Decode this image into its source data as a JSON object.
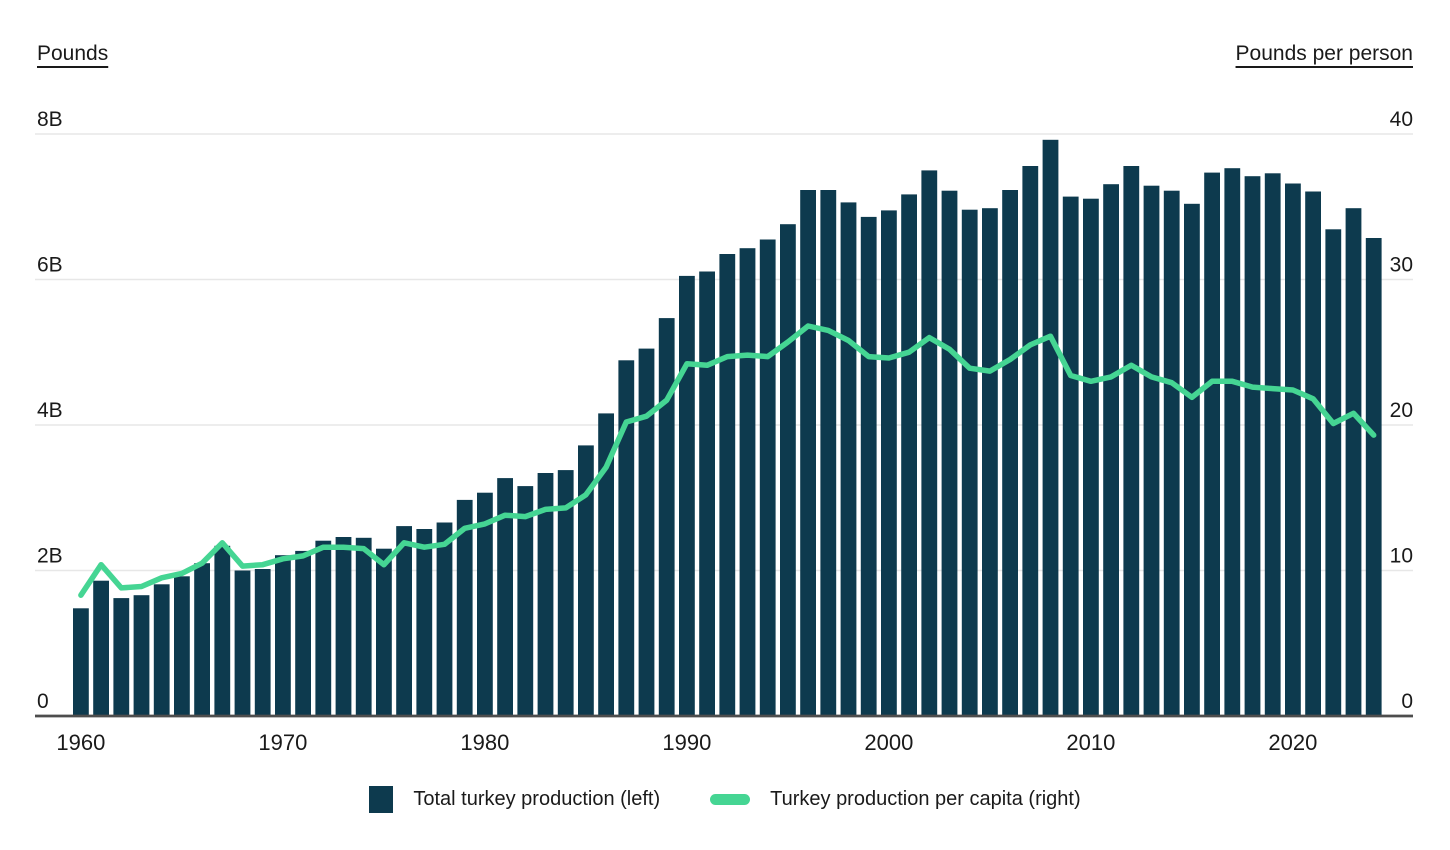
{
  "axes": {
    "left_title": "Pounds",
    "right_title": "Pounds per person"
  },
  "legend": [
    {
      "label": "Total turkey production (left)",
      "swatch": "square"
    },
    {
      "label": "Turkey production per capita (right)",
      "swatch": "line"
    }
  ],
  "chart_data": {
    "type": "combo",
    "title": "",
    "x": [
      1960,
      1961,
      1962,
      1963,
      1964,
      1965,
      1966,
      1967,
      1968,
      1969,
      1970,
      1971,
      1972,
      1973,
      1974,
      1975,
      1976,
      1977,
      1978,
      1979,
      1980,
      1981,
      1982,
      1983,
      1984,
      1985,
      1986,
      1987,
      1988,
      1989,
      1990,
      1991,
      1992,
      1993,
      1994,
      1995,
      1996,
      1997,
      1998,
      1999,
      2000,
      2001,
      2002,
      2003,
      2004,
      2005,
      2006,
      2007,
      2008,
      2009,
      2010,
      2011,
      2012,
      2013,
      2014,
      2015,
      2016,
      2017,
      2018,
      2019,
      2020,
      2021,
      2022,
      2023,
      2024
    ],
    "series": [
      {
        "name": "Total turkey production (left)",
        "type": "bar",
        "axis": "left",
        "unit": "billion pounds",
        "values": [
          1.48,
          1.86,
          1.62,
          1.66,
          1.81,
          1.92,
          2.1,
          2.34,
          2.0,
          2.02,
          2.21,
          2.27,
          2.41,
          2.46,
          2.45,
          2.3,
          2.61,
          2.57,
          2.66,
          2.97,
          3.07,
          3.27,
          3.16,
          3.34,
          3.38,
          3.72,
          4.16,
          4.89,
          5.05,
          5.47,
          6.05,
          6.11,
          6.35,
          6.43,
          6.55,
          6.76,
          7.23,
          7.23,
          7.06,
          6.86,
          6.95,
          7.17,
          7.5,
          7.22,
          6.96,
          6.98,
          7.23,
          7.56,
          7.92,
          7.14,
          7.11,
          7.31,
          7.56,
          7.29,
          7.22,
          7.04,
          7.47,
          7.53,
          7.42,
          7.46,
          7.32,
          7.21,
          6.69,
          6.98,
          6.57
        ]
      },
      {
        "name": "Turkey production per capita (right)",
        "type": "line",
        "axis": "right",
        "unit": "pounds per person",
        "values": [
          8.3,
          10.4,
          8.8,
          8.9,
          9.5,
          9.8,
          10.5,
          11.9,
          10.3,
          10.4,
          10.8,
          11.0,
          11.6,
          11.6,
          11.5,
          10.4,
          11.9,
          11.6,
          11.8,
          12.9,
          13.2,
          13.8,
          13.7,
          14.2,
          14.3,
          15.2,
          17.1,
          20.2,
          20.6,
          21.7,
          24.2,
          24.1,
          24.7,
          24.8,
          24.7,
          25.7,
          26.8,
          26.5,
          25.8,
          24.7,
          24.6,
          25.0,
          26.0,
          25.2,
          23.9,
          23.7,
          24.5,
          25.5,
          26.1,
          23.4,
          23.0,
          23.3,
          24.1,
          23.3,
          22.9,
          21.9,
          23.0,
          23.0,
          22.6,
          22.5,
          22.4,
          21.8,
          20.1,
          20.8,
          19.3
        ]
      }
    ],
    "left_axis": {
      "title": "Pounds",
      "ticks": [
        "8B",
        "6B",
        "4B",
        "2B",
        "0"
      ],
      "tick_values": [
        8,
        6,
        4,
        2,
        0
      ],
      "range": [
        0,
        8
      ]
    },
    "right_axis": {
      "title": "Pounds per person",
      "ticks": [
        "40",
        "30",
        "20",
        "10",
        "0"
      ],
      "tick_values": [
        40,
        30,
        20,
        10,
        0
      ],
      "range": [
        0,
        40
      ]
    },
    "x_axis": {
      "ticks": [
        "1960",
        "1970",
        "1980",
        "1990",
        "2000",
        "2010",
        "2020"
      ]
    },
    "grid": true,
    "legend_position": "bottom",
    "colors": {
      "bar": "#0d3a4e",
      "line": "#45d593",
      "gridline": "#e7e7e7",
      "axis_line": "#4d4d4d",
      "text": "#1a1a1a"
    }
  }
}
